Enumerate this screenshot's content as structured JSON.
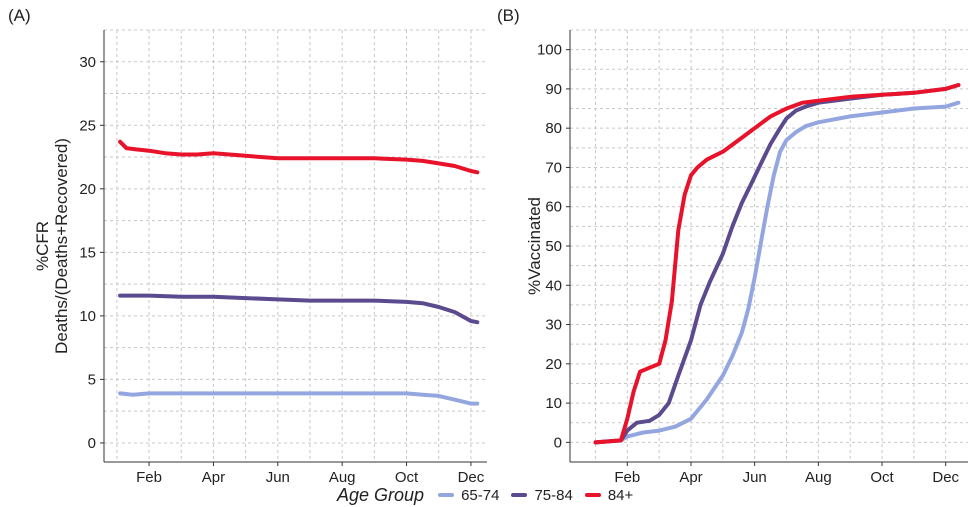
{
  "panel_a_label": "(A)",
  "panel_b_label": "(B)",
  "legend": {
    "title": "Age Group",
    "items": [
      {
        "name": "65-74",
        "color": "#94a6e0"
      },
      {
        "name": "75-84",
        "color": "#5b4b8e"
      },
      {
        "name": "84+",
        "color": "#e8122a"
      }
    ]
  },
  "chart_data": [
    {
      "type": "line",
      "panel": "(A)",
      "ylabel": "%CFR",
      "ylabel2": "Deaths/(Deaths+Recovered)",
      "xlabel": "",
      "x_ticks": [
        "Feb",
        "Apr",
        "Jun",
        "Aug",
        "Oct",
        "Dec"
      ],
      "x_tick_months": [
        2,
        4,
        6,
        8,
        10,
        12
      ],
      "xlim_months": [
        0.6,
        12.5
      ],
      "ylim": [
        -1.5,
        32.5
      ],
      "y_ticks": [
        0,
        5,
        10,
        15,
        20,
        25,
        30
      ],
      "grid": true,
      "series": [
        {
          "name": "65-74",
          "color": "#94a6e0",
          "x": [
            1.1,
            1.5,
            2.0,
            3.0,
            4.0,
            5.0,
            6.0,
            7.0,
            8.0,
            9.0,
            10.0,
            10.5,
            11.0,
            11.5,
            12.0,
            12.2
          ],
          "y": [
            3.9,
            3.8,
            3.9,
            3.9,
            3.9,
            3.9,
            3.9,
            3.9,
            3.9,
            3.9,
            3.9,
            3.8,
            3.7,
            3.4,
            3.1,
            3.1
          ]
        },
        {
          "name": "75-84",
          "color": "#5b4b8e",
          "x": [
            1.1,
            1.5,
            2.0,
            3.0,
            4.0,
            5.0,
            6.0,
            7.0,
            8.0,
            9.0,
            10.0,
            10.5,
            11.0,
            11.5,
            12.0,
            12.2
          ],
          "y": [
            11.6,
            11.6,
            11.6,
            11.5,
            11.5,
            11.4,
            11.3,
            11.2,
            11.2,
            11.2,
            11.1,
            11.0,
            10.7,
            10.3,
            9.6,
            9.5
          ]
        },
        {
          "name": "84+",
          "color": "#e8122a",
          "x": [
            1.1,
            1.3,
            1.6,
            2.0,
            2.5,
            3.0,
            3.5,
            4.0,
            5.0,
            6.0,
            7.0,
            8.0,
            9.0,
            10.0,
            10.5,
            11.0,
            11.5,
            12.0,
            12.2
          ],
          "y": [
            23.7,
            23.2,
            23.1,
            23.0,
            22.8,
            22.7,
            22.7,
            22.8,
            22.6,
            22.4,
            22.4,
            22.4,
            22.4,
            22.3,
            22.2,
            22.0,
            21.8,
            21.4,
            21.3
          ]
        }
      ]
    },
    {
      "type": "line",
      "panel": "(B)",
      "ylabel": "%Vaccinated",
      "xlabel": "",
      "x_ticks": [
        "Feb",
        "Apr",
        "Jun",
        "Aug",
        "Oct",
        "Dec"
      ],
      "x_tick_months": [
        2,
        4,
        6,
        8,
        10,
        12
      ],
      "xlim_months": [
        0.2,
        12.7
      ],
      "ylim": [
        -5,
        105
      ],
      "y_ticks": [
        0,
        10,
        20,
        30,
        40,
        50,
        60,
        70,
        80,
        90,
        100
      ],
      "grid": true,
      "series": [
        {
          "name": "65-74",
          "color": "#94a6e0",
          "x": [
            1.0,
            1.8,
            2.0,
            2.5,
            3.0,
            3.5,
            4.0,
            4.5,
            5.0,
            5.3,
            5.6,
            5.8,
            6.0,
            6.2,
            6.4,
            6.6,
            6.8,
            7.0,
            7.3,
            7.6,
            8.0,
            9.0,
            10.0,
            11.0,
            12.0,
            12.4
          ],
          "y": [
            0,
            0.5,
            1.5,
            2.5,
            3.0,
            4.0,
            6.0,
            11.0,
            17.0,
            22.0,
            28.0,
            34.0,
            42.0,
            51.0,
            60.0,
            68.0,
            74.0,
            77.0,
            79.0,
            80.5,
            81.5,
            83.0,
            84.0,
            85.0,
            85.5,
            86.5
          ]
        },
        {
          "name": "75-84",
          "color": "#5b4b8e",
          "x": [
            1.0,
            1.8,
            2.0,
            2.3,
            2.7,
            3.0,
            3.3,
            3.6,
            4.0,
            4.3,
            4.6,
            5.0,
            5.3,
            5.6,
            5.9,
            6.2,
            6.5,
            6.8,
            7.0,
            7.3,
            7.6,
            8.0,
            9.0,
            10.0,
            11.0,
            12.0,
            12.4
          ],
          "y": [
            0,
            0.5,
            3.0,
            5.0,
            5.5,
            7.0,
            10.0,
            17.0,
            26.0,
            35.0,
            41.0,
            48.0,
            55.0,
            61.0,
            66.0,
            71.0,
            76.0,
            80.0,
            82.5,
            84.5,
            85.5,
            86.5,
            87.5,
            88.5,
            89.0,
            90.0,
            91.0
          ]
        },
        {
          "name": "84+",
          "color": "#e8122a",
          "x": [
            1.0,
            1.8,
            2.0,
            2.2,
            2.4,
            2.7,
            3.0,
            3.2,
            3.4,
            3.6,
            3.8,
            4.0,
            4.2,
            4.5,
            5.0,
            5.5,
            6.0,
            6.5,
            7.0,
            7.5,
            8.0,
            9.0,
            10.0,
            11.0,
            12.0,
            12.4
          ],
          "y": [
            0,
            0.5,
            6.0,
            13.0,
            18.0,
            19.0,
            20.0,
            26.0,
            36.0,
            54.0,
            63.0,
            68.0,
            70.0,
            72.0,
            74.0,
            77.0,
            80.0,
            83.0,
            85.0,
            86.5,
            87.0,
            88.0,
            88.5,
            89.0,
            90.0,
            91.0
          ]
        }
      ]
    }
  ]
}
